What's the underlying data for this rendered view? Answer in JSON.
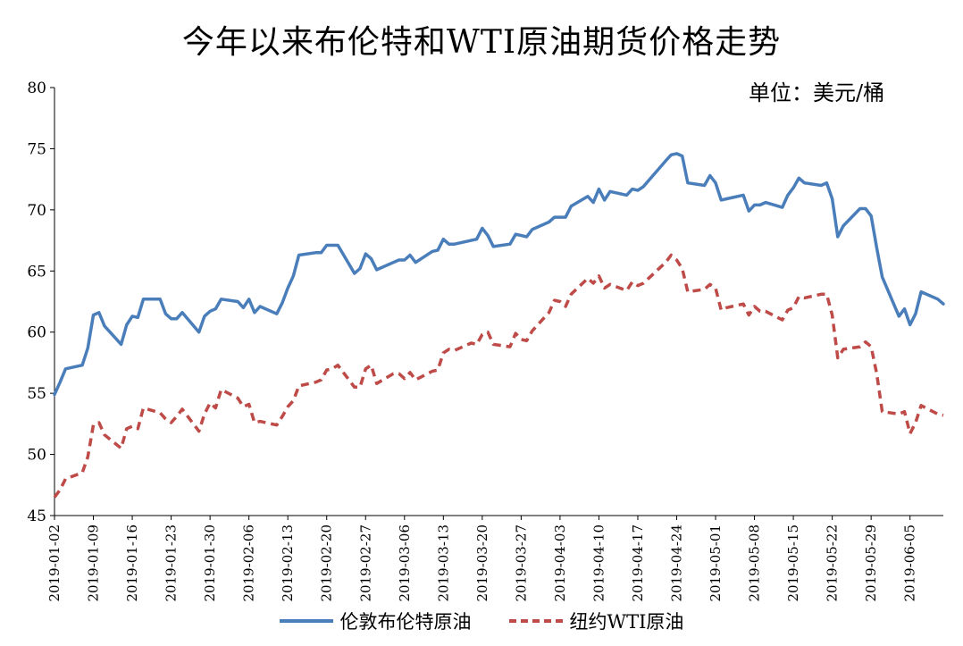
{
  "chart_data": {
    "type": "line",
    "title": "今年以来布伦特和WTI原油期货价格走势",
    "unit_label": "单位：美元/桶",
    "ylim": [
      45,
      80
    ],
    "yticks": [
      45,
      50,
      55,
      60,
      65,
      70,
      75,
      80
    ],
    "xlim": [
      "2019-01-02",
      "2019-06-11"
    ],
    "xticks": [
      "2019-01-02",
      "2019-01-09",
      "2019-01-16",
      "2019-01-23",
      "2019-01-30",
      "2019-02-06",
      "2019-02-13",
      "2019-02-20",
      "2019-02-27",
      "2019-03-06",
      "2019-03-13",
      "2019-03-20",
      "2019-03-27",
      "2019-04-03",
      "2019-04-10",
      "2019-04-17",
      "2019-04-24",
      "2019-05-01",
      "2019-05-08",
      "2019-05-15",
      "2019-05-22",
      "2019-05-29",
      "2019-06-05"
    ],
    "legend_position": "bottom",
    "grid": false,
    "series": [
      {
        "name": "伦敦布伦特原油",
        "color": "#4a7ebb",
        "style": "solid",
        "points": [
          [
            "2019-01-02",
            54.9
          ],
          [
            "2019-01-03",
            55.9
          ],
          [
            "2019-01-04",
            57.0
          ],
          [
            "2019-01-07",
            57.3
          ],
          [
            "2019-01-08",
            58.7
          ],
          [
            "2019-01-09",
            61.4
          ],
          [
            "2019-01-10",
            61.6
          ],
          [
            "2019-01-11",
            60.5
          ],
          [
            "2019-01-14",
            59.0
          ],
          [
            "2019-01-15",
            60.6
          ],
          [
            "2019-01-16",
            61.3
          ],
          [
            "2019-01-17",
            61.2
          ],
          [
            "2019-01-18",
            62.7
          ],
          [
            "2019-01-21",
            62.7
          ],
          [
            "2019-01-22",
            61.5
          ],
          [
            "2019-01-23",
            61.1
          ],
          [
            "2019-01-24",
            61.1
          ],
          [
            "2019-01-25",
            61.6
          ],
          [
            "2019-01-28",
            60.0
          ],
          [
            "2019-01-29",
            61.3
          ],
          [
            "2019-01-30",
            61.7
          ],
          [
            "2019-01-31",
            61.9
          ],
          [
            "2019-02-01",
            62.7
          ],
          [
            "2019-02-04",
            62.5
          ],
          [
            "2019-02-05",
            62.0
          ],
          [
            "2019-02-06",
            62.7
          ],
          [
            "2019-02-07",
            61.6
          ],
          [
            "2019-02-08",
            62.1
          ],
          [
            "2019-02-11",
            61.5
          ],
          [
            "2019-02-12",
            62.4
          ],
          [
            "2019-02-13",
            63.6
          ],
          [
            "2019-02-14",
            64.6
          ],
          [
            "2019-02-15",
            66.3
          ],
          [
            "2019-02-18",
            66.5
          ],
          [
            "2019-02-19",
            66.5
          ],
          [
            "2019-02-20",
            67.1
          ],
          [
            "2019-02-21",
            67.1
          ],
          [
            "2019-02-22",
            67.1
          ],
          [
            "2019-02-25",
            64.8
          ],
          [
            "2019-02-26",
            65.2
          ],
          [
            "2019-02-27",
            66.4
          ],
          [
            "2019-02-28",
            66.0
          ],
          [
            "2019-03-01",
            65.1
          ],
          [
            "2019-03-04",
            65.7
          ],
          [
            "2019-03-05",
            65.9
          ],
          [
            "2019-03-06",
            65.9
          ],
          [
            "2019-03-07",
            66.3
          ],
          [
            "2019-03-08",
            65.7
          ],
          [
            "2019-03-11",
            66.6
          ],
          [
            "2019-03-12",
            66.7
          ],
          [
            "2019-03-13",
            67.6
          ],
          [
            "2019-03-14",
            67.2
          ],
          [
            "2019-03-15",
            67.2
          ],
          [
            "2019-03-18",
            67.5
          ],
          [
            "2019-03-19",
            67.6
          ],
          [
            "2019-03-20",
            68.5
          ],
          [
            "2019-03-21",
            67.9
          ],
          [
            "2019-03-22",
            67.0
          ],
          [
            "2019-03-25",
            67.2
          ],
          [
            "2019-03-26",
            68.0
          ],
          [
            "2019-03-27",
            67.9
          ],
          [
            "2019-03-28",
            67.8
          ],
          [
            "2019-03-29",
            68.4
          ],
          [
            "2019-04-01",
            69.0
          ],
          [
            "2019-04-02",
            69.4
          ],
          [
            "2019-04-03",
            69.4
          ],
          [
            "2019-04-04",
            69.4
          ],
          [
            "2019-04-05",
            70.3
          ],
          [
            "2019-04-08",
            71.1
          ],
          [
            "2019-04-09",
            70.6
          ],
          [
            "2019-04-10",
            71.7
          ],
          [
            "2019-04-11",
            70.8
          ],
          [
            "2019-04-12",
            71.5
          ],
          [
            "2019-04-15",
            71.2
          ],
          [
            "2019-04-16",
            71.7
          ],
          [
            "2019-04-17",
            71.6
          ],
          [
            "2019-04-18",
            71.9
          ],
          [
            "2019-04-22",
            74.0
          ],
          [
            "2019-04-23",
            74.5
          ],
          [
            "2019-04-24",
            74.6
          ],
          [
            "2019-04-25",
            74.4
          ],
          [
            "2019-04-26",
            72.2
          ],
          [
            "2019-04-29",
            72.0
          ],
          [
            "2019-04-30",
            72.8
          ],
          [
            "2019-05-01",
            72.2
          ],
          [
            "2019-05-02",
            70.8
          ],
          [
            "2019-05-03",
            70.9
          ],
          [
            "2019-05-06",
            71.2
          ],
          [
            "2019-05-07",
            69.9
          ],
          [
            "2019-05-08",
            70.4
          ],
          [
            "2019-05-09",
            70.4
          ],
          [
            "2019-05-10",
            70.6
          ],
          [
            "2019-05-13",
            70.2
          ],
          [
            "2019-05-14",
            71.2
          ],
          [
            "2019-05-15",
            71.8
          ],
          [
            "2019-05-16",
            72.6
          ],
          [
            "2019-05-17",
            72.2
          ],
          [
            "2019-05-20",
            72.0
          ],
          [
            "2019-05-21",
            72.2
          ],
          [
            "2019-05-22",
            70.9
          ],
          [
            "2019-05-23",
            67.8
          ],
          [
            "2019-05-24",
            68.7
          ],
          [
            "2019-05-27",
            70.1
          ],
          [
            "2019-05-28",
            70.1
          ],
          [
            "2019-05-29",
            69.5
          ],
          [
            "2019-05-30",
            66.9
          ],
          [
            "2019-05-31",
            64.5
          ],
          [
            "2019-06-03",
            61.3
          ],
          [
            "2019-06-04",
            61.9
          ],
          [
            "2019-06-05",
            60.6
          ],
          [
            "2019-06-06",
            61.5
          ],
          [
            "2019-06-07",
            63.3
          ],
          [
            "2019-06-10",
            62.7
          ],
          [
            "2019-06-11",
            62.3
          ]
        ]
      },
      {
        "name": "纽约WTI原油",
        "color": "#be4b48",
        "style": "dashed",
        "points": [
          [
            "2019-01-02",
            46.5
          ],
          [
            "2019-01-03",
            47.1
          ],
          [
            "2019-01-04",
            48.0
          ],
          [
            "2019-01-07",
            48.5
          ],
          [
            "2019-01-08",
            49.8
          ],
          [
            "2019-01-09",
            52.4
          ],
          [
            "2019-01-10",
            52.6
          ],
          [
            "2019-01-11",
            51.6
          ],
          [
            "2019-01-14",
            50.5
          ],
          [
            "2019-01-15",
            52.1
          ],
          [
            "2019-01-16",
            52.3
          ],
          [
            "2019-01-17",
            52.1
          ],
          [
            "2019-01-18",
            53.8
          ],
          [
            "2019-01-21",
            53.4
          ],
          [
            "2019-01-22",
            52.9
          ],
          [
            "2019-01-23",
            52.6
          ],
          [
            "2019-01-24",
            53.1
          ],
          [
            "2019-01-25",
            53.7
          ],
          [
            "2019-01-28",
            51.9
          ],
          [
            "2019-01-29",
            53.3
          ],
          [
            "2019-01-30",
            54.2
          ],
          [
            "2019-01-31",
            53.8
          ],
          [
            "2019-02-01",
            55.3
          ],
          [
            "2019-02-04",
            54.6
          ],
          [
            "2019-02-05",
            53.9
          ],
          [
            "2019-02-06",
            54.1
          ],
          [
            "2019-02-07",
            52.6
          ],
          [
            "2019-02-08",
            52.7
          ],
          [
            "2019-02-11",
            52.4
          ],
          [
            "2019-02-12",
            53.1
          ],
          [
            "2019-02-13",
            53.9
          ],
          [
            "2019-02-14",
            54.4
          ],
          [
            "2019-02-15",
            55.6
          ],
          [
            "2019-02-18",
            55.9
          ],
          [
            "2019-02-19",
            56.1
          ],
          [
            "2019-02-20",
            56.9
          ],
          [
            "2019-02-21",
            57.0
          ],
          [
            "2019-02-22",
            57.3
          ],
          [
            "2019-02-25",
            55.5
          ],
          [
            "2019-02-26",
            55.5
          ],
          [
            "2019-02-27",
            57.0
          ],
          [
            "2019-02-28",
            57.3
          ],
          [
            "2019-03-01",
            55.8
          ],
          [
            "2019-03-04",
            56.6
          ],
          [
            "2019-03-05",
            56.6
          ],
          [
            "2019-03-06",
            56.2
          ],
          [
            "2019-03-07",
            56.7
          ],
          [
            "2019-03-08",
            56.1
          ],
          [
            "2019-03-11",
            56.8
          ],
          [
            "2019-03-12",
            56.9
          ],
          [
            "2019-03-13",
            58.3
          ],
          [
            "2019-03-14",
            58.6
          ],
          [
            "2019-03-15",
            58.5
          ],
          [
            "2019-03-18",
            59.1
          ],
          [
            "2019-03-19",
            59.0
          ],
          [
            "2019-03-20",
            59.8
          ],
          [
            "2019-03-21",
            60.0
          ],
          [
            "2019-03-22",
            59.0
          ],
          [
            "2019-03-25",
            58.8
          ],
          [
            "2019-03-26",
            59.9
          ],
          [
            "2019-03-27",
            59.4
          ],
          [
            "2019-03-28",
            59.3
          ],
          [
            "2019-03-29",
            60.1
          ],
          [
            "2019-04-01",
            61.6
          ],
          [
            "2019-04-02",
            62.6
          ],
          [
            "2019-04-03",
            62.5
          ],
          [
            "2019-04-04",
            62.1
          ],
          [
            "2019-04-05",
            63.1
          ],
          [
            "2019-04-08",
            64.4
          ],
          [
            "2019-04-09",
            64.0
          ],
          [
            "2019-04-10",
            64.6
          ],
          [
            "2019-04-11",
            63.6
          ],
          [
            "2019-04-12",
            63.9
          ],
          [
            "2019-04-15",
            63.4
          ],
          [
            "2019-04-16",
            64.1
          ],
          [
            "2019-04-17",
            63.8
          ],
          [
            "2019-04-18",
            64.0
          ],
          [
            "2019-04-22",
            65.7
          ],
          [
            "2019-04-23",
            66.3
          ],
          [
            "2019-04-24",
            65.9
          ],
          [
            "2019-04-25",
            65.2
          ],
          [
            "2019-04-26",
            63.3
          ],
          [
            "2019-04-29",
            63.5
          ],
          [
            "2019-04-30",
            63.9
          ],
          [
            "2019-05-01",
            63.6
          ],
          [
            "2019-05-02",
            61.8
          ],
          [
            "2019-05-03",
            62.0
          ],
          [
            "2019-05-06",
            62.3
          ],
          [
            "2019-05-07",
            61.4
          ],
          [
            "2019-05-08",
            62.1
          ],
          [
            "2019-05-09",
            61.7
          ],
          [
            "2019-05-10",
            61.7
          ],
          [
            "2019-05-13",
            61.0
          ],
          [
            "2019-05-14",
            61.8
          ],
          [
            "2019-05-15",
            62.0
          ],
          [
            "2019-05-16",
            62.9
          ],
          [
            "2019-05-17",
            62.8
          ],
          [
            "2019-05-20",
            63.1
          ],
          [
            "2019-05-21",
            63.1
          ],
          [
            "2019-05-22",
            61.4
          ],
          [
            "2019-05-23",
            57.9
          ],
          [
            "2019-05-24",
            58.6
          ],
          [
            "2019-05-27",
            58.8
          ],
          [
            "2019-05-28",
            59.2
          ],
          [
            "2019-05-29",
            58.8
          ],
          [
            "2019-05-30",
            56.6
          ],
          [
            "2019-05-31",
            53.5
          ],
          [
            "2019-06-03",
            53.3
          ],
          [
            "2019-06-04",
            53.5
          ],
          [
            "2019-06-05",
            51.7
          ],
          [
            "2019-06-06",
            52.6
          ],
          [
            "2019-06-07",
            54.0
          ],
          [
            "2019-06-10",
            53.3
          ],
          [
            "2019-06-11",
            53.2
          ]
        ]
      }
    ]
  }
}
